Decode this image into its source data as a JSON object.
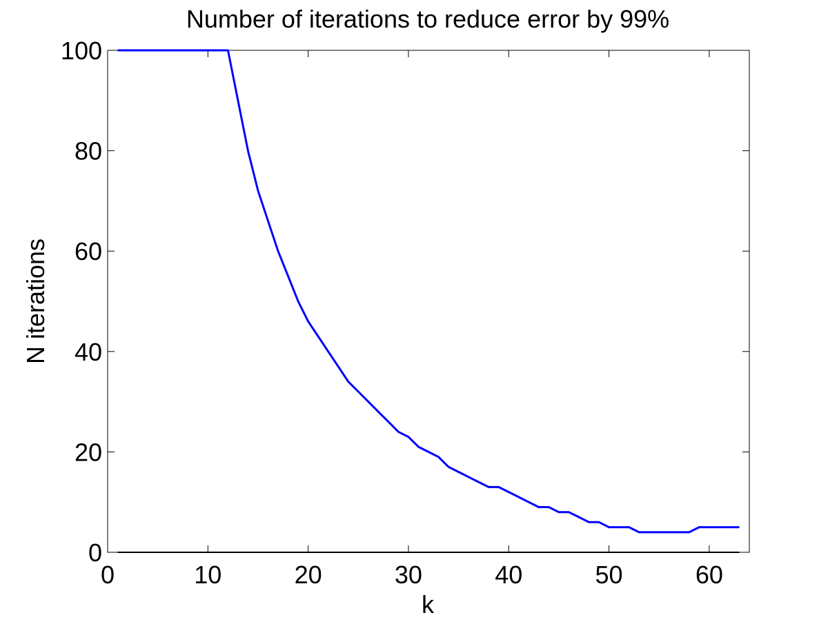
{
  "chart_data": {
    "type": "line",
    "title": "Number of iterations to reduce error by 99%",
    "xlabel": "k",
    "ylabel": "N iterations",
    "xlim": [
      0,
      64
    ],
    "ylim": [
      0,
      100
    ],
    "xticks": [
      0,
      10,
      20,
      30,
      40,
      50,
      60
    ],
    "yticks": [
      0,
      20,
      40,
      60,
      80,
      100
    ],
    "grid": false,
    "series": [
      {
        "color": "#0000ff",
        "x": [
          1,
          2,
          3,
          4,
          5,
          6,
          7,
          8,
          9,
          10,
          11,
          12,
          13,
          14,
          15,
          16,
          17,
          18,
          19,
          20,
          21,
          22,
          23,
          24,
          25,
          26,
          27,
          28,
          29,
          30,
          31,
          32,
          33,
          34,
          35,
          36,
          37,
          38,
          39,
          40,
          41,
          42,
          43,
          44,
          45,
          46,
          47,
          48,
          49,
          50,
          51,
          52,
          53,
          54,
          55,
          56,
          57,
          58,
          59,
          60,
          61,
          62,
          63
        ],
        "y": [
          100,
          100,
          100,
          100,
          100,
          100,
          100,
          100,
          100,
          100,
          100,
          100,
          90,
          80,
          72,
          66,
          60,
          55,
          50,
          46,
          43,
          40,
          37,
          34,
          32,
          30,
          28,
          26,
          24,
          23,
          21,
          20,
          19,
          17,
          16,
          15,
          14,
          13,
          13,
          12,
          11,
          10,
          9,
          9,
          8,
          8,
          7,
          6,
          6,
          5,
          5,
          5,
          4,
          4,
          4,
          4,
          4,
          4,
          5,
          5,
          5,
          5,
          5
        ]
      },
      {
        "color": "#000000",
        "x": [
          1,
          63
        ],
        "y": [
          0,
          0
        ]
      }
    ]
  }
}
